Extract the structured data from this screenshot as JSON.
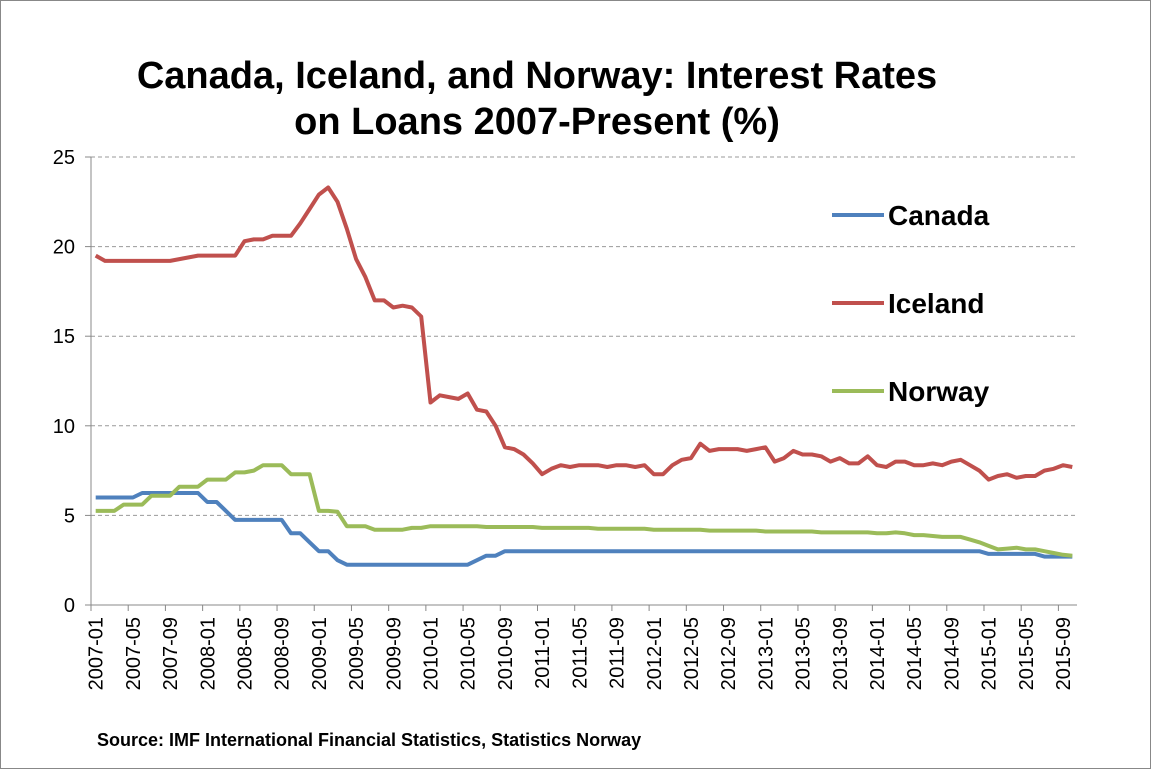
{
  "chart_data": {
    "type": "line",
    "title": [
      "Canada, Iceland, and Norway: Interest Rates",
      "on Loans 2007-Present (%)"
    ],
    "annotation": "Source: IMF International Financial Statistics, Statistics Norway",
    "categories": [
      "2007-01",
      null,
      null,
      null,
      "2007-05",
      null,
      null,
      null,
      "2007-09",
      null,
      null,
      null,
      "2008-01",
      null,
      null,
      null,
      "2008-05",
      null,
      null,
      null,
      "2008-09",
      null,
      null,
      null,
      "2009-01",
      null,
      null,
      null,
      "2009-05",
      null,
      null,
      null,
      "2009-09",
      null,
      null,
      null,
      "2010-01",
      null,
      null,
      null,
      "2010-05",
      null,
      null,
      null,
      "2010-09",
      null,
      null,
      null,
      "2011-01",
      null,
      null,
      null,
      "2011-05",
      null,
      null,
      null,
      "2011-09",
      null,
      null,
      null,
      "2012-01",
      null,
      null,
      null,
      "2012-05",
      null,
      null,
      null,
      "2012-09",
      null,
      null,
      null,
      "2013-01",
      null,
      null,
      null,
      "2013-05",
      null,
      null,
      null,
      "2013-09",
      null,
      null,
      null,
      "2014-01",
      null,
      null,
      null,
      "2014-05",
      null,
      null,
      null,
      "2014-09",
      null,
      null,
      null,
      "2015-01",
      null,
      null,
      null,
      "2015-05",
      null,
      null,
      null,
      "2015-09",
      null
    ],
    "series": [
      {
        "name": "Canada",
        "color": "#4f81bd",
        "values": [
          6,
          6,
          6,
          6,
          6,
          6.25,
          6.25,
          6.25,
          6.25,
          6.25,
          6.25,
          6.25,
          5.75,
          5.75,
          5.25,
          4.75,
          4.75,
          4.75,
          4.75,
          4.75,
          4.75,
          4,
          4,
          3.5,
          3,
          3,
          2.5,
          2.25,
          2.25,
          2.25,
          2.25,
          2.25,
          2.25,
          2.25,
          2.25,
          2.25,
          2.25,
          2.25,
          2.25,
          2.25,
          2.25,
          2.5,
          2.75,
          2.75,
          3,
          3,
          3,
          3,
          3,
          3,
          3,
          3,
          3,
          3,
          3,
          3,
          3,
          3,
          3,
          3,
          3,
          3,
          3,
          3,
          3,
          3,
          3,
          3,
          3,
          3,
          3,
          3,
          3,
          3,
          3,
          3,
          3,
          3,
          3,
          3,
          3,
          3,
          3,
          3,
          3,
          3,
          3,
          3,
          3,
          3,
          3,
          3,
          3,
          3,
          3,
          3,
          2.85,
          2.85,
          2.85,
          2.85,
          2.85,
          2.85,
          2.7,
          2.7,
          2.7,
          2.7
        ]
      },
      {
        "name": "Iceland",
        "color": "#c0504d",
        "values": [
          19.5,
          19.2,
          19.2,
          19.2,
          19.2,
          19.2,
          19.2,
          19.2,
          19.2,
          19.3,
          19.4,
          19.5,
          19.5,
          19.5,
          19.5,
          19.5,
          20.3,
          20.4,
          20.4,
          20.6,
          20.6,
          20.6,
          21.3,
          22.1,
          22.9,
          23.3,
          22.5,
          21.0,
          19.3,
          18.3,
          17.0,
          17.0,
          16.6,
          16.7,
          16.6,
          16.1,
          11.3,
          11.7,
          11.6,
          11.5,
          11.8,
          10.9,
          10.8,
          10.0,
          8.8,
          8.7,
          8.4,
          7.9,
          7.3,
          7.6,
          7.8,
          7.7,
          7.8,
          7.8,
          7.8,
          7.7,
          7.8,
          7.8,
          7.7,
          7.8,
          7.3,
          7.3,
          7.8,
          8.1,
          8.2,
          9.0,
          8.6,
          8.7,
          8.7,
          8.7,
          8.6,
          8.7,
          8.8,
          8.0,
          8.2,
          8.6,
          8.4,
          8.4,
          8.3,
          8.0,
          8.2,
          7.9,
          7.9,
          8.3,
          7.8,
          7.7,
          8.0,
          8.0,
          7.8,
          7.8,
          7.9,
          7.8,
          8.0,
          8.1,
          7.8,
          7.5,
          7.0,
          7.2,
          7.3,
          7.1,
          7.2,
          7.2,
          7.5,
          7.6,
          7.8,
          7.7
        ]
      },
      {
        "name": "Norway",
        "color": "#9bbb59",
        "values": [
          5.25,
          5.25,
          5.25,
          5.6,
          5.6,
          5.6,
          6.1,
          6.1,
          6.1,
          6.6,
          6.6,
          6.6,
          7,
          7,
          7,
          7.4,
          7.4,
          7.5,
          7.8,
          7.8,
          7.8,
          7.3,
          7.3,
          7.3,
          5.25,
          5.25,
          5.2,
          4.4,
          4.4,
          4.4,
          4.2,
          4.2,
          4.2,
          4.2,
          4.3,
          4.3,
          4.4,
          4.4,
          4.4,
          4.4,
          4.4,
          4.4,
          4.35,
          4.35,
          4.35,
          4.35,
          4.35,
          4.35,
          4.3,
          4.3,
          4.3,
          4.3,
          4.3,
          4.3,
          4.25,
          4.25,
          4.25,
          4.25,
          4.25,
          4.25,
          4.2,
          4.2,
          4.2,
          4.2,
          4.2,
          4.2,
          4.15,
          4.15,
          4.15,
          4.15,
          4.15,
          4.15,
          4.1,
          4.1,
          4.1,
          4.1,
          4.1,
          4.1,
          4.05,
          4.05,
          4.05,
          4.05,
          4.05,
          4.05,
          4.0,
          4.0,
          4.05,
          4.0,
          3.9,
          3.9,
          3.85,
          3.8,
          3.8,
          3.8,
          3.65,
          3.5,
          3.3,
          3.1,
          3.15,
          3.2,
          3.1,
          3.1,
          3.0,
          2.9,
          2.8,
          2.75
        ]
      }
    ],
    "ylim": [
      0,
      25
    ],
    "yticks": [
      0,
      5,
      10,
      15,
      20,
      25
    ],
    "grid": true,
    "legend": "right"
  }
}
